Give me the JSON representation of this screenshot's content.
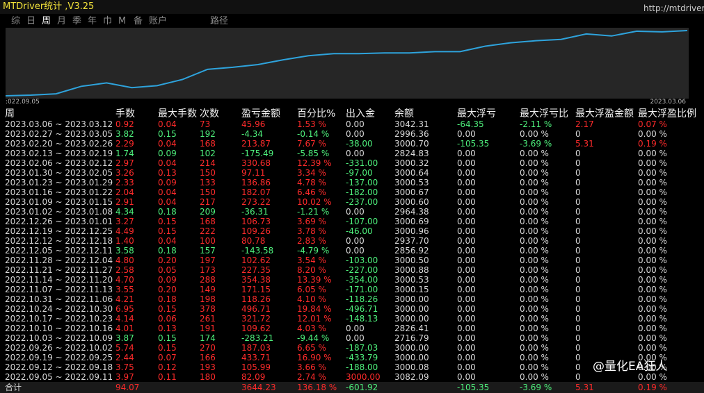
{
  "header": {
    "title": "MTDriver统计 ,V3.25",
    "url": "http://mtdriver.com",
    "tabs": [
      "综",
      "日",
      "周",
      "月",
      "季",
      "年",
      "巾",
      "M",
      "备",
      "账户",
      "路径"
    ]
  },
  "chart": {
    "type": "line",
    "values": [
      2,
      3,
      5,
      16,
      21,
      14,
      17,
      26,
      41,
      44,
      48,
      55,
      61,
      64,
      64,
      65,
      65,
      67,
      67,
      75,
      80,
      83,
      85,
      93,
      90,
      97,
      96,
      98
    ],
    "ylim": [
      0,
      100
    ],
    "x_labels": [
      ":022.09.05",
      "2023.03.06"
    ],
    "color": "#2ea3dc"
  },
  "table": {
    "columns": [
      "周",
      "手数",
      "最大手数",
      "次数",
      "盈亏金额",
      "百分比%",
      "出入金",
      "余额",
      "最大浮亏",
      "最大浮亏比",
      "最大浮盈金额",
      "最大浮盈比例"
    ],
    "rows": [
      [
        "2023.03.06 ~ 2023.03.12",
        "0.92",
        "0.04",
        "73",
        "45.96",
        "1.53 %",
        "0.00",
        "3042.31",
        "-64.35",
        "-2.11 %",
        "2.17",
        "0.07 %"
      ],
      [
        "2023.02.27 ~ 2023.03.05",
        "3.82",
        "0.15",
        "192",
        "-4.34",
        "-0.14 %",
        "0.00",
        "2996.36",
        "0.00",
        "0.00 %",
        "0",
        "0.00 %"
      ],
      [
        "2023.02.20 ~ 2023.02.26",
        "2.29",
        "0.04",
        "168",
        "213.87",
        "7.67 %",
        "-38.00",
        "3000.70",
        "-105.35",
        "-3.69 %",
        "5.31",
        "0.19 %"
      ],
      [
        "2023.02.13 ~ 2023.02.19",
        "1.74",
        "0.09",
        "102",
        "-175.49",
        "-5.85 %",
        "0.00",
        "2824.83",
        "0.00",
        "0.00 %",
        "0",
        "0.00 %"
      ],
      [
        "2023.02.06 ~ 2023.02.12",
        "2.97",
        "0.04",
        "214",
        "330.68",
        "12.39 %",
        "-331.00",
        "3000.32",
        "0.00",
        "0.00 %",
        "0",
        "0.00 %"
      ],
      [
        "2023.01.30 ~ 2023.02.05",
        "3.26",
        "0.13",
        "150",
        "97.11",
        "3.34 %",
        "-97.00",
        "3000.64",
        "0.00",
        "0.00 %",
        "0",
        "0.00 %"
      ],
      [
        "2023.01.23 ~ 2023.01.29",
        "2.33",
        "0.09",
        "133",
        "136.86",
        "4.78 %",
        "-137.00",
        "3000.53",
        "0.00",
        "0.00 %",
        "0",
        "0.00 %"
      ],
      [
        "2023.01.16 ~ 2023.01.22",
        "2.04",
        "0.04",
        "150",
        "182.07",
        "6.46 %",
        "-182.00",
        "3000.67",
        "0.00",
        "0.00 %",
        "0",
        "0.00 %"
      ],
      [
        "2023.01.09 ~ 2023.01.15",
        "2.91",
        "0.04",
        "217",
        "273.22",
        "10.02 %",
        "-237.00",
        "3000.60",
        "0.00",
        "0.00 %",
        "0",
        "0.00 %"
      ],
      [
        "2023.01.02 ~ 2023.01.08",
        "4.34",
        "0.18",
        "209",
        "-36.31",
        "-1.21 %",
        "0.00",
        "2964.38",
        "0.00",
        "0.00 %",
        "0",
        "0.00 %"
      ],
      [
        "2022.12.26 ~ 2023.01.01",
        "3.27",
        "0.15",
        "168",
        "106.73",
        "3.69 %",
        "-107.00",
        "3000.69",
        "0.00",
        "0.00 %",
        "0",
        "0.00 %"
      ],
      [
        "2022.12.19 ~ 2022.12.25",
        "4.49",
        "0.15",
        "222",
        "109.26",
        "3.78 %",
        "-46.00",
        "3000.96",
        "0.00",
        "0.00 %",
        "0",
        "0.00 %"
      ],
      [
        "2022.12.12 ~ 2022.12.18",
        "1.40",
        "0.04",
        "100",
        "80.78",
        "2.83 %",
        "0.00",
        "2937.70",
        "0.00",
        "0.00 %",
        "0",
        "0.00 %"
      ],
      [
        "2022.12.05 ~ 2022.12.11",
        "3.58",
        "0.18",
        "157",
        "-143.58",
        "-4.79 %",
        "0.00",
        "2856.92",
        "0.00",
        "0.00 %",
        "0",
        "0.00 %"
      ],
      [
        "2022.11.28 ~ 2022.12.04",
        "4.80",
        "0.20",
        "197",
        "102.62",
        "3.54 %",
        "-103.00",
        "3000.50",
        "0.00",
        "0.00 %",
        "0",
        "0.00 %"
      ],
      [
        "2022.11.21 ~ 2022.11.27",
        "2.58",
        "0.05",
        "173",
        "227.35",
        "8.20 %",
        "-227.00",
        "3000.88",
        "0.00",
        "0.00 %",
        "0",
        "0.00 %"
      ],
      [
        "2022.11.14 ~ 2022.11.20",
        "4.70",
        "0.09",
        "288",
        "354.38",
        "13.39 %",
        "-354.00",
        "3000.53",
        "0.00",
        "0.00 %",
        "0",
        "0.00 %"
      ],
      [
        "2022.11.07 ~ 2022.11.13",
        "3.55",
        "0.20",
        "149",
        "171.15",
        "6.05 %",
        "-171.00",
        "3000.15",
        "0.00",
        "0.00 %",
        "0",
        "0.00 %"
      ],
      [
        "2022.10.31 ~ 2022.11.06",
        "4.21",
        "0.18",
        "198",
        "118.26",
        "4.10 %",
        "-118.26",
        "3000.00",
        "0.00",
        "0.00 %",
        "0",
        "0.00 %"
      ],
      [
        "2022.10.24 ~ 2022.10.30",
        "6.95",
        "0.15",
        "378",
        "496.71",
        "19.84 %",
        "-496.71",
        "3000.00",
        "0.00",
        "0.00 %",
        "0",
        "0.00 %"
      ],
      [
        "2022.10.17 ~ 2022.10.23",
        "4.14",
        "0.06",
        "261",
        "321.72",
        "12.01 %",
        "-148.13",
        "3000.00",
        "0.00",
        "0.00 %",
        "0",
        "0.00 %"
      ],
      [
        "2022.10.10 ~ 2022.10.16",
        "4.01",
        "0.13",
        "191",
        "109.62",
        "4.03 %",
        "0.00",
        "2826.41",
        "0.00",
        "0.00 %",
        "0",
        "0.00 %"
      ],
      [
        "2022.10.03 ~ 2022.10.09",
        "3.87",
        "0.15",
        "174",
        "-283.21",
        "-9.44 %",
        "0.00",
        "2716.79",
        "0.00",
        "0.00 %",
        "0",
        "0.00 %"
      ],
      [
        "2022.09.26 ~ 2022.10.02",
        "5.74",
        "0.15",
        "270",
        "187.03",
        "6.65 %",
        "-187.03",
        "3000.00",
        "0.00",
        "0.00 %",
        "0",
        "0.00 %"
      ],
      [
        "2022.09.19 ~ 2022.09.25",
        "2.44",
        "0.07",
        "166",
        "433.71",
        "16.90 %",
        "-433.79",
        "3000.00",
        "0.00",
        "0.00 %",
        "0",
        "0.00 %"
      ],
      [
        "2022.09.12 ~ 2022.09.18",
        "3.75",
        "0.12",
        "193",
        "105.99",
        "3.66 %",
        "-188.00",
        "3000.08",
        "0.00",
        "0.00 %",
        "0",
        "0.00 %"
      ],
      [
        "2022.09.05 ~ 2022.09.11",
        "3.97",
        "0.11",
        "180",
        "82.09",
        "2.74 %",
        "3000.00",
        "3082.09",
        "0.00",
        "0.00 %",
        "0",
        "0.00 %"
      ]
    ],
    "total": {
      "label": "合计",
      "lots": "94.07",
      "pnl": "3644.23",
      "pct": "136.18 %",
      "flow": "-601.92",
      "max_loss": "-105.35",
      "max_loss_pct": "-3.69 %",
      "max_profit": "5.31",
      "max_profit_pct": "0.19 %"
    }
  },
  "watermark": "@量化EA狂人"
}
